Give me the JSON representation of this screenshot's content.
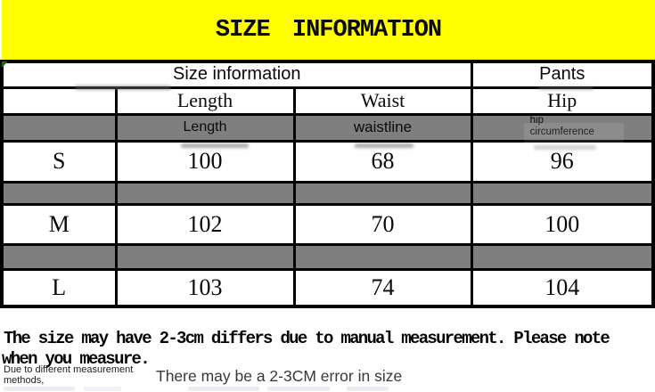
{
  "banner": {
    "title": "SIZE INFORMATION",
    "bg_color": "#ffff00",
    "text_color": "#0a0a0a"
  },
  "table": {
    "header": {
      "merged_label": "Size information",
      "pants_label": "Pants"
    },
    "columns": [
      "Length",
      "Waist",
      "Hip"
    ],
    "sub_header": {
      "length": "Length",
      "waistline": "waistline",
      "hip_line1": "hip",
      "hip_line2": "circumference"
    },
    "rows": [
      {
        "size": "S",
        "length": "100",
        "waist": "68",
        "hip": "96"
      },
      {
        "size": "M",
        "length": "102",
        "waist": "70",
        "hip": "100"
      },
      {
        "size": "L",
        "length": "103",
        "waist": "74",
        "hip": "104"
      }
    ],
    "colors": {
      "grid": "#000000",
      "gray_row": "#7f7f7f",
      "corner_marker_green": "#156a1d"
    }
  },
  "footer": {
    "note_line1": "The size may have 2-3cm differs due to manual measurement. Please note",
    "note_line2": "when you measure.",
    "small_note_line1": "Due to different measurement",
    "small_note_line2": "methods,",
    "side_note": "There may be a 2-3CM error in size"
  }
}
